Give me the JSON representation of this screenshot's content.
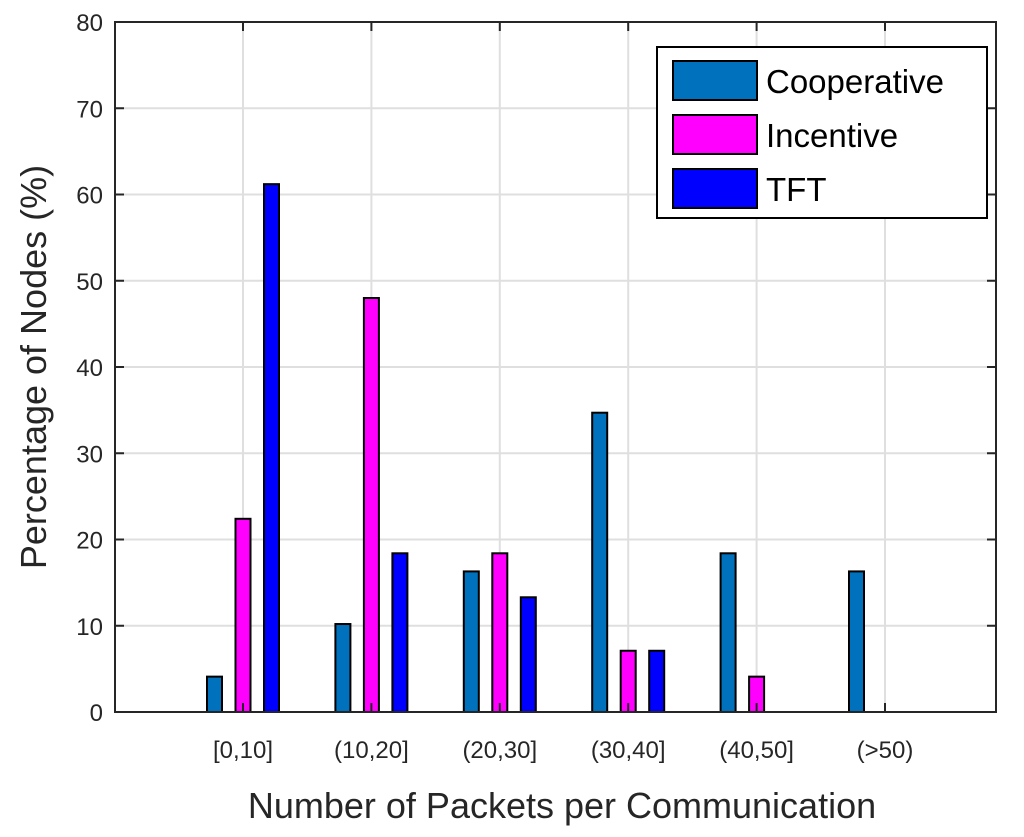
{
  "chart_data": {
    "type": "bar",
    "xlabel": "Number of Packets per Communication",
    "ylabel": "Percentage of Nodes (%)",
    "ylim": [
      0,
      80
    ],
    "yticks": [
      "0",
      "10",
      "20",
      "30",
      "40",
      "50",
      "60",
      "70",
      "80"
    ],
    "categories": [
      "[0,10]",
      "(10,20]",
      "(20,30]",
      "(30,40]",
      "(40,50]",
      "(>50)"
    ],
    "grid": true,
    "legend_position": "top-right",
    "series": [
      {
        "name": "Cooperative",
        "color": "#0072BD",
        "values": [
          4.1,
          10.2,
          16.3,
          34.7,
          18.4,
          16.3
        ]
      },
      {
        "name": "Incentive",
        "color": "#FF00FF",
        "values": [
          22.4,
          48.0,
          18.4,
          7.1,
          4.1,
          0
        ]
      },
      {
        "name": "TFT",
        "color": "#0000FF",
        "values": [
          61.2,
          18.4,
          13.3,
          7.1,
          0,
          0
        ]
      }
    ]
  }
}
